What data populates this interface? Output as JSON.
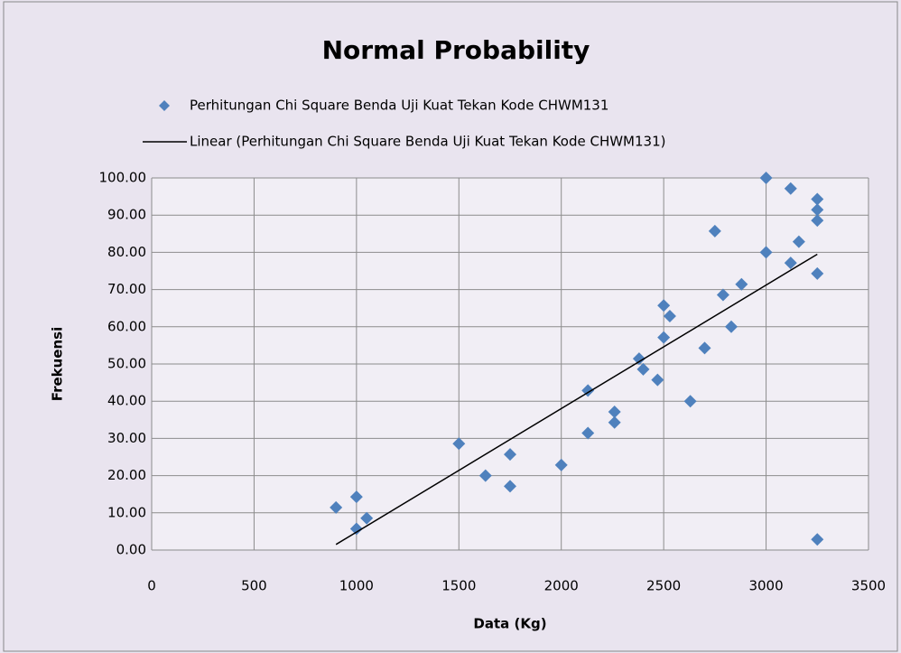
{
  "chart_data": {
    "type": "scatter",
    "title": "Normal Probability",
    "x_label": "Data (Kg)",
    "y_label": "Frekuensi",
    "series": [
      {
        "name": "Perhitungan Chi Square Benda Uji Kuat Tekan Kode CHWM131",
        "color": "#4f81bd",
        "kind": "marker",
        "x": [
          3250,
          1000,
          1050,
          900,
          1000,
          1750,
          1630,
          2000,
          1750,
          1500,
          2130,
          2260,
          2260,
          2630,
          2130,
          2470,
          2400,
          2380,
          2700,
          2500,
          2830,
          2530,
          2500,
          2790,
          2880,
          3250,
          3120,
          3000,
          3160,
          2750,
          3250,
          3250,
          3250,
          3120,
          3000
        ],
        "values": [
          2.86,
          5.71,
          8.57,
          11.43,
          14.29,
          17.14,
          20,
          22.86,
          25.71,
          28.57,
          31.43,
          34.29,
          37.14,
          40,
          42.86,
          45.71,
          48.57,
          51.43,
          54.29,
          57.14,
          60,
          62.86,
          65.71,
          68.57,
          71.43,
          74.29,
          77.14,
          80,
          82.86,
          85.71,
          88.57,
          91.43,
          94.29,
          97.14,
          100
        ]
      },
      {
        "name": "Linear (Perhitungan Chi Square Benda Uji Kuat Tekan Kode CHWM131)",
        "color": "#000000",
        "kind": "line",
        "x": [
          900,
          3250
        ],
        "values": [
          1.5,
          79.5
        ]
      }
    ],
    "xlim": [
      0,
      3500
    ],
    "xticks": [
      0,
      500,
      1000,
      1500,
      2000,
      2500,
      3000,
      3500
    ],
    "ylim": [
      0,
      100
    ],
    "yticks": [
      {
        "value": 0,
        "label": "0.00"
      },
      {
        "value": 10,
        "label": "10.00"
      },
      {
        "value": 20,
        "label": "20.00"
      },
      {
        "value": 30,
        "label": "30.00"
      },
      {
        "value": 40,
        "label": "40.00"
      },
      {
        "value": 50,
        "label": "50.00"
      },
      {
        "value": 60,
        "label": "60.00"
      },
      {
        "value": 70,
        "label": "70.00"
      },
      {
        "value": 80,
        "label": "80.00"
      },
      {
        "value": 90,
        "label": "90.00"
      },
      {
        "value": 100,
        "label": "100.00"
      }
    ],
    "grid": true
  }
}
